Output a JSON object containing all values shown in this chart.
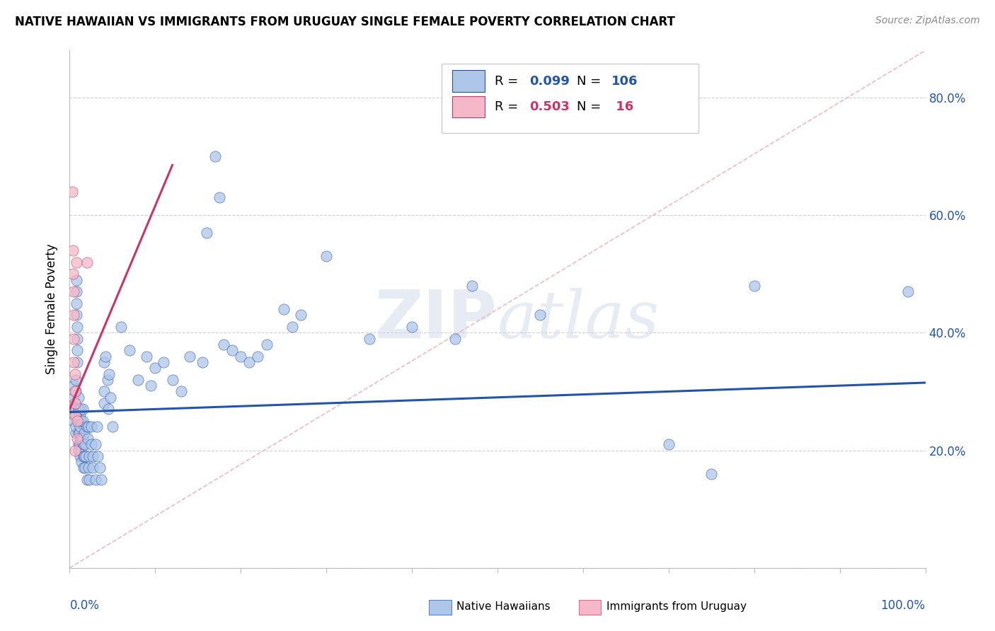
{
  "title": "NATIVE HAWAIIAN VS IMMIGRANTS FROM URUGUAY SINGLE FEMALE POVERTY CORRELATION CHART",
  "source": "Source: ZipAtlas.com",
  "ylabel": "Single Female Poverty",
  "xlim": [
    0.0,
    1.0
  ],
  "ylim": [
    0.0,
    0.88
  ],
  "y_ticks": [
    0.0,
    0.2,
    0.4,
    0.6,
    0.8
  ],
  "y_tick_labels": [
    "",
    "20.0%",
    "40.0%",
    "60.0%",
    "80.0%"
  ],
  "watermark": "ZIPatlas",
  "series1_color": "#aec6e8",
  "series2_color": "#f4b8c8",
  "trend1_color": "#2255aa",
  "trend2_color": "#cc3366",
  "diag_color": "#e8b4bc",
  "blue_scatter": [
    [
      0.005,
      0.27
    ],
    [
      0.005,
      0.29
    ],
    [
      0.005,
      0.25
    ],
    [
      0.005,
      0.31
    ],
    [
      0.007,
      0.27
    ],
    [
      0.007,
      0.3
    ],
    [
      0.007,
      0.32
    ],
    [
      0.007,
      0.26
    ],
    [
      0.007,
      0.23
    ],
    [
      0.007,
      0.24
    ],
    [
      0.008,
      0.45
    ],
    [
      0.008,
      0.47
    ],
    [
      0.008,
      0.43
    ],
    [
      0.008,
      0.49
    ],
    [
      0.009,
      0.39
    ],
    [
      0.009,
      0.41
    ],
    [
      0.009,
      0.37
    ],
    [
      0.009,
      0.35
    ],
    [
      0.01,
      0.27
    ],
    [
      0.01,
      0.29
    ],
    [
      0.01,
      0.25
    ],
    [
      0.01,
      0.23
    ],
    [
      0.01,
      0.21
    ],
    [
      0.01,
      0.2
    ],
    [
      0.011,
      0.27
    ],
    [
      0.011,
      0.25
    ],
    [
      0.011,
      0.23
    ],
    [
      0.011,
      0.21
    ],
    [
      0.012,
      0.19
    ],
    [
      0.012,
      0.22
    ],
    [
      0.012,
      0.24
    ],
    [
      0.012,
      0.26
    ],
    [
      0.013,
      0.27
    ],
    [
      0.013,
      0.25
    ],
    [
      0.013,
      0.22
    ],
    [
      0.013,
      0.2
    ],
    [
      0.014,
      0.18
    ],
    [
      0.014,
      0.22
    ],
    [
      0.015,
      0.22
    ],
    [
      0.015,
      0.25
    ],
    [
      0.015,
      0.27
    ],
    [
      0.016,
      0.17
    ],
    [
      0.016,
      0.19
    ],
    [
      0.016,
      0.21
    ],
    [
      0.017,
      0.23
    ],
    [
      0.017,
      0.19
    ],
    [
      0.018,
      0.21
    ],
    [
      0.018,
      0.17
    ],
    [
      0.019,
      0.19
    ],
    [
      0.02,
      0.15
    ],
    [
      0.02,
      0.24
    ],
    [
      0.021,
      0.22
    ],
    [
      0.022,
      0.24
    ],
    [
      0.022,
      0.17
    ],
    [
      0.023,
      0.15
    ],
    [
      0.023,
      0.19
    ],
    [
      0.025,
      0.24
    ],
    [
      0.025,
      0.21
    ],
    [
      0.027,
      0.19
    ],
    [
      0.027,
      0.17
    ],
    [
      0.03,
      0.15
    ],
    [
      0.03,
      0.21
    ],
    [
      0.032,
      0.24
    ],
    [
      0.033,
      0.19
    ],
    [
      0.035,
      0.17
    ],
    [
      0.037,
      0.15
    ],
    [
      0.04,
      0.3
    ],
    [
      0.04,
      0.35
    ],
    [
      0.04,
      0.28
    ],
    [
      0.042,
      0.36
    ],
    [
      0.044,
      0.32
    ],
    [
      0.045,
      0.27
    ],
    [
      0.046,
      0.33
    ],
    [
      0.048,
      0.29
    ],
    [
      0.05,
      0.24
    ],
    [
      0.06,
      0.41
    ],
    [
      0.07,
      0.37
    ],
    [
      0.08,
      0.32
    ],
    [
      0.09,
      0.36
    ],
    [
      0.095,
      0.31
    ],
    [
      0.1,
      0.34
    ],
    [
      0.11,
      0.35
    ],
    [
      0.12,
      0.32
    ],
    [
      0.13,
      0.3
    ],
    [
      0.14,
      0.36
    ],
    [
      0.155,
      0.35
    ],
    [
      0.16,
      0.57
    ],
    [
      0.17,
      0.7
    ],
    [
      0.175,
      0.63
    ],
    [
      0.18,
      0.38
    ],
    [
      0.19,
      0.37
    ],
    [
      0.2,
      0.36
    ],
    [
      0.21,
      0.35
    ],
    [
      0.22,
      0.36
    ],
    [
      0.23,
      0.38
    ],
    [
      0.25,
      0.44
    ],
    [
      0.26,
      0.41
    ],
    [
      0.27,
      0.43
    ],
    [
      0.3,
      0.53
    ],
    [
      0.35,
      0.39
    ],
    [
      0.4,
      0.41
    ],
    [
      0.45,
      0.39
    ],
    [
      0.47,
      0.48
    ],
    [
      0.55,
      0.43
    ],
    [
      0.7,
      0.21
    ],
    [
      0.75,
      0.16
    ],
    [
      0.8,
      0.48
    ],
    [
      0.98,
      0.47
    ]
  ],
  "pink_scatter": [
    [
      0.003,
      0.64
    ],
    [
      0.004,
      0.54
    ],
    [
      0.004,
      0.5
    ],
    [
      0.005,
      0.47
    ],
    [
      0.005,
      0.43
    ],
    [
      0.005,
      0.39
    ],
    [
      0.005,
      0.35
    ],
    [
      0.006,
      0.33
    ],
    [
      0.006,
      0.3
    ],
    [
      0.006,
      0.28
    ],
    [
      0.006,
      0.26
    ],
    [
      0.006,
      0.2
    ],
    [
      0.008,
      0.52
    ],
    [
      0.009,
      0.25
    ],
    [
      0.009,
      0.22
    ],
    [
      0.02,
      0.52
    ]
  ],
  "trend1_x": [
    0.0,
    1.0
  ],
  "trend1_y": [
    0.265,
    0.315
  ],
  "trend2_x": [
    0.0,
    0.12
  ],
  "trend2_y": [
    0.27,
    0.685
  ]
}
